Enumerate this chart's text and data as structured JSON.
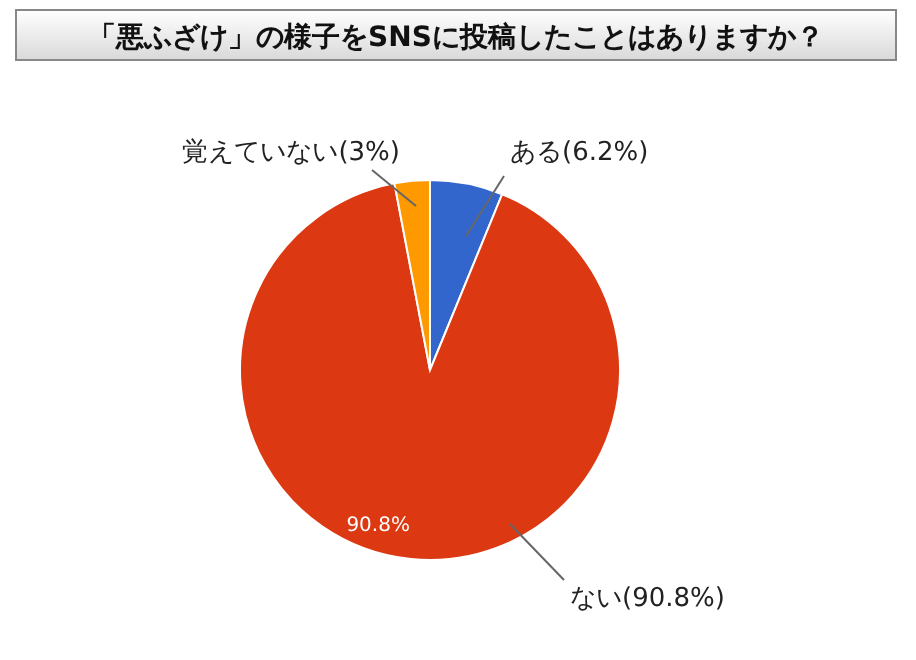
{
  "chart_data": {
    "type": "pie",
    "title": "「悪ふざけ」の様子をSNSに投稿したことはありますか？",
    "categories": [
      "ある(6.2%)",
      "ない(90.8%)",
      "覚えていない(3%)"
    ],
    "values": [
      6.2,
      90.8,
      3
    ],
    "colors": [
      "#3366cc",
      "#dc3912",
      "#ff9900"
    ],
    "value_labels": [
      null,
      "90.8%",
      null
    ]
  }
}
